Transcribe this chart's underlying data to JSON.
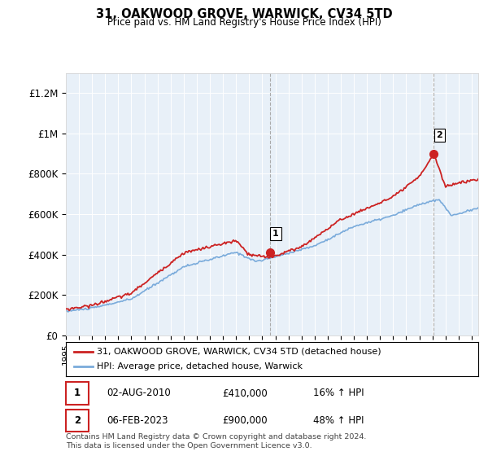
{
  "title": "31, OAKWOOD GROVE, WARWICK, CV34 5TD",
  "subtitle": "Price paid vs. HM Land Registry's House Price Index (HPI)",
  "ylabel_ticks": [
    "£0",
    "£200K",
    "£400K",
    "£600K",
    "£800K",
    "£1M",
    "£1.2M"
  ],
  "ytick_values": [
    0,
    200000,
    400000,
    600000,
    800000,
    1000000,
    1200000
  ],
  "ylim": [
    0,
    1300000
  ],
  "xlim_start": 1995,
  "xlim_end": 2026.5,
  "hpi_color": "#7aabdb",
  "price_color": "#cc2222",
  "marker_color": "#cc2222",
  "background_color": "#ffffff",
  "plot_bg_color": "#e8f0f8",
  "grid_color": "#ffffff",
  "legend_label_price": "31, OAKWOOD GROVE, WARWICK, CV34 5TD (detached house)",
  "legend_label_hpi": "HPI: Average price, detached house, Warwick",
  "sale1_date": 2010.58,
  "sale1_price": 410000,
  "sale2_date": 2023.09,
  "sale2_price": 900000,
  "vline_color": "#aaaaaa",
  "footnote": "Contains HM Land Registry data © Crown copyright and database right 2024.\nThis data is licensed under the Open Government Licence v3.0.",
  "table_row1": [
    "1",
    "02-AUG-2010",
    "£410,000",
    "16% ↑ HPI"
  ],
  "table_row2": [
    "2",
    "06-FEB-2023",
    "£900,000",
    "48% ↑ HPI"
  ]
}
